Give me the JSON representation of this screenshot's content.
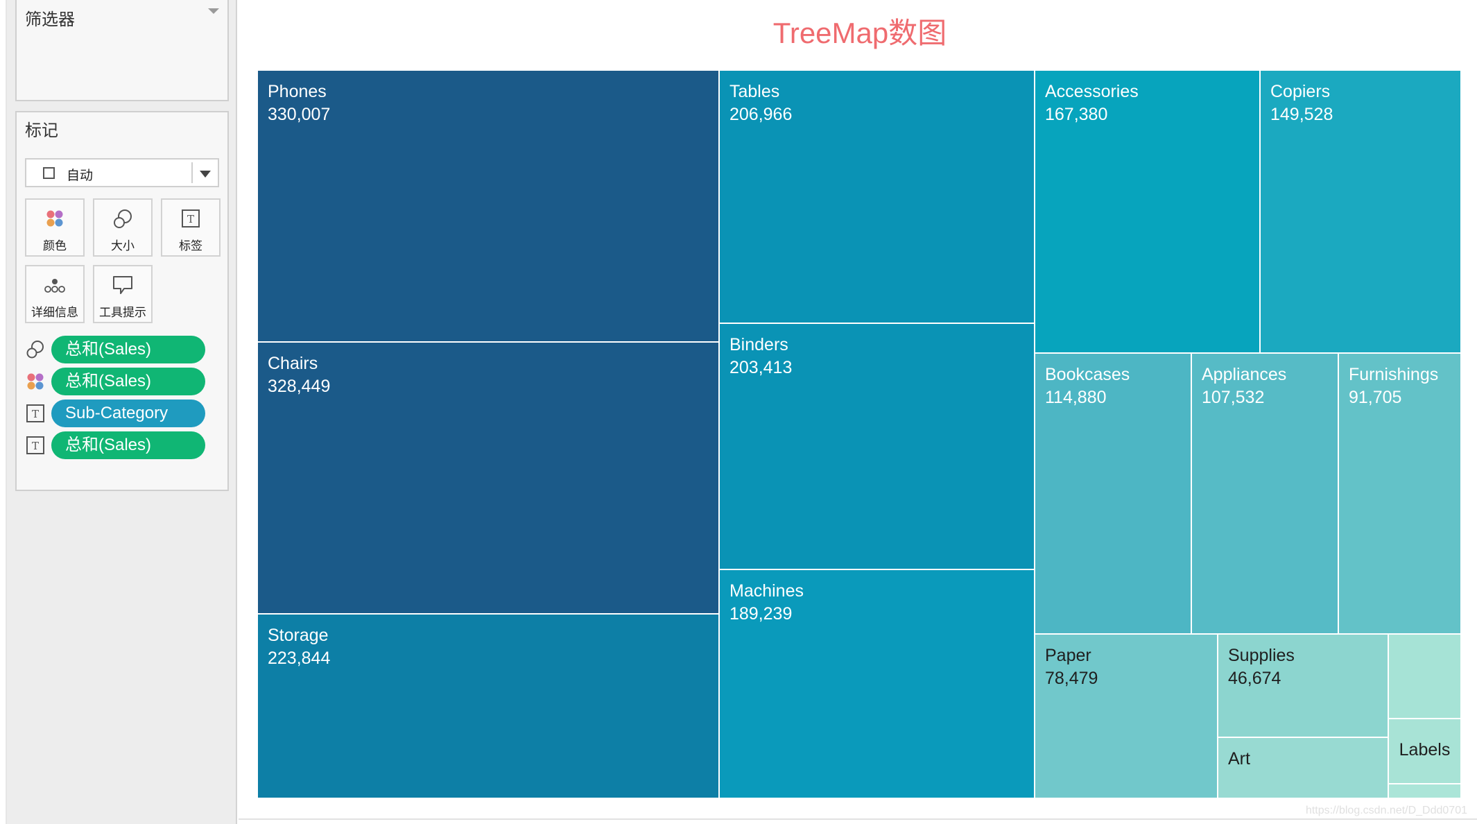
{
  "filters": {
    "title": "筛选器"
  },
  "marks": {
    "title": "标记",
    "mark_type": "自动",
    "buttons": [
      {
        "label": "颜色",
        "icon": "color-dots-icon"
      },
      {
        "label": "大小",
        "icon": "size-icon"
      },
      {
        "label": "标签",
        "icon": "label-icon"
      },
      {
        "label": "详细信息",
        "icon": "detail-dots-icon"
      },
      {
        "label": "工具提示",
        "icon": "tooltip-icon"
      }
    ],
    "shelf": [
      {
        "icon": "size-icon",
        "field": "总和(Sales)",
        "color": "#10b674"
      },
      {
        "icon": "color-dots-icon",
        "field": "总和(Sales)",
        "color": "#10b674"
      },
      {
        "icon": "label-icon",
        "field": "Sub-Category",
        "color": "#1f9bbf"
      },
      {
        "icon": "label-icon",
        "field": "总和(Sales)",
        "color": "#10b674"
      }
    ]
  },
  "viz": {
    "title": "TreeMap数图",
    "title_color": "#ef6b6f"
  },
  "chart_data": {
    "type": "treemap",
    "title": "TreeMap数图",
    "label_field": "Sub-Category",
    "size_field": "总和(Sales)",
    "color_field": "总和(Sales)",
    "series": [
      {
        "name": "Phones",
        "value": 330007,
        "value_label": "330,007",
        "color": "#1b5a89"
      },
      {
        "name": "Chairs",
        "value": 328449,
        "value_label": "328,449",
        "color": "#1b5a89"
      },
      {
        "name": "Storage",
        "value": 223844,
        "value_label": "223,844",
        "color": "#0d7fa6"
      },
      {
        "name": "Tables",
        "value": 206966,
        "value_label": "206,966",
        "color": "#0a93b5"
      },
      {
        "name": "Binders",
        "value": 203413,
        "value_label": "203,413",
        "color": "#0a93b5"
      },
      {
        "name": "Machines",
        "value": 189239,
        "value_label": "189,239",
        "color": "#0a9abb"
      },
      {
        "name": "Accessories",
        "value": 167380,
        "value_label": "167,380",
        "color": "#07a4bd"
      },
      {
        "name": "Copiers",
        "value": 149528,
        "value_label": "149,528",
        "color": "#1ba9c0"
      },
      {
        "name": "Bookcases",
        "value": 114880,
        "value_label": "114,880",
        "color": "#4db6c4"
      },
      {
        "name": "Appliances",
        "value": 107532,
        "value_label": "107,532",
        "color": "#56bbc6"
      },
      {
        "name": "Furnishings",
        "value": 91705,
        "value_label": "91,705",
        "color": "#63c2c8"
      },
      {
        "name": "Paper",
        "value": 78479,
        "value_label": "78,479",
        "color": "#71c8cb"
      },
      {
        "name": "Supplies",
        "value": 46674,
        "value_label": "46,674",
        "color": "#8cd5cf"
      },
      {
        "name": "Art",
        "value": null,
        "value_label": "",
        "color": "#98dad2"
      },
      {
        "name": "",
        "value": null,
        "value_label": "",
        "color": "#a6e3d6"
      },
      {
        "name": "Labels",
        "value": null,
        "value_label": "",
        "color": "#a8e3d6"
      },
      {
        "name": "",
        "value": null,
        "value_label": "",
        "color": "#abe5d8"
      }
    ]
  },
  "watermark": "https://blog.csdn.net/D_Ddd0701"
}
